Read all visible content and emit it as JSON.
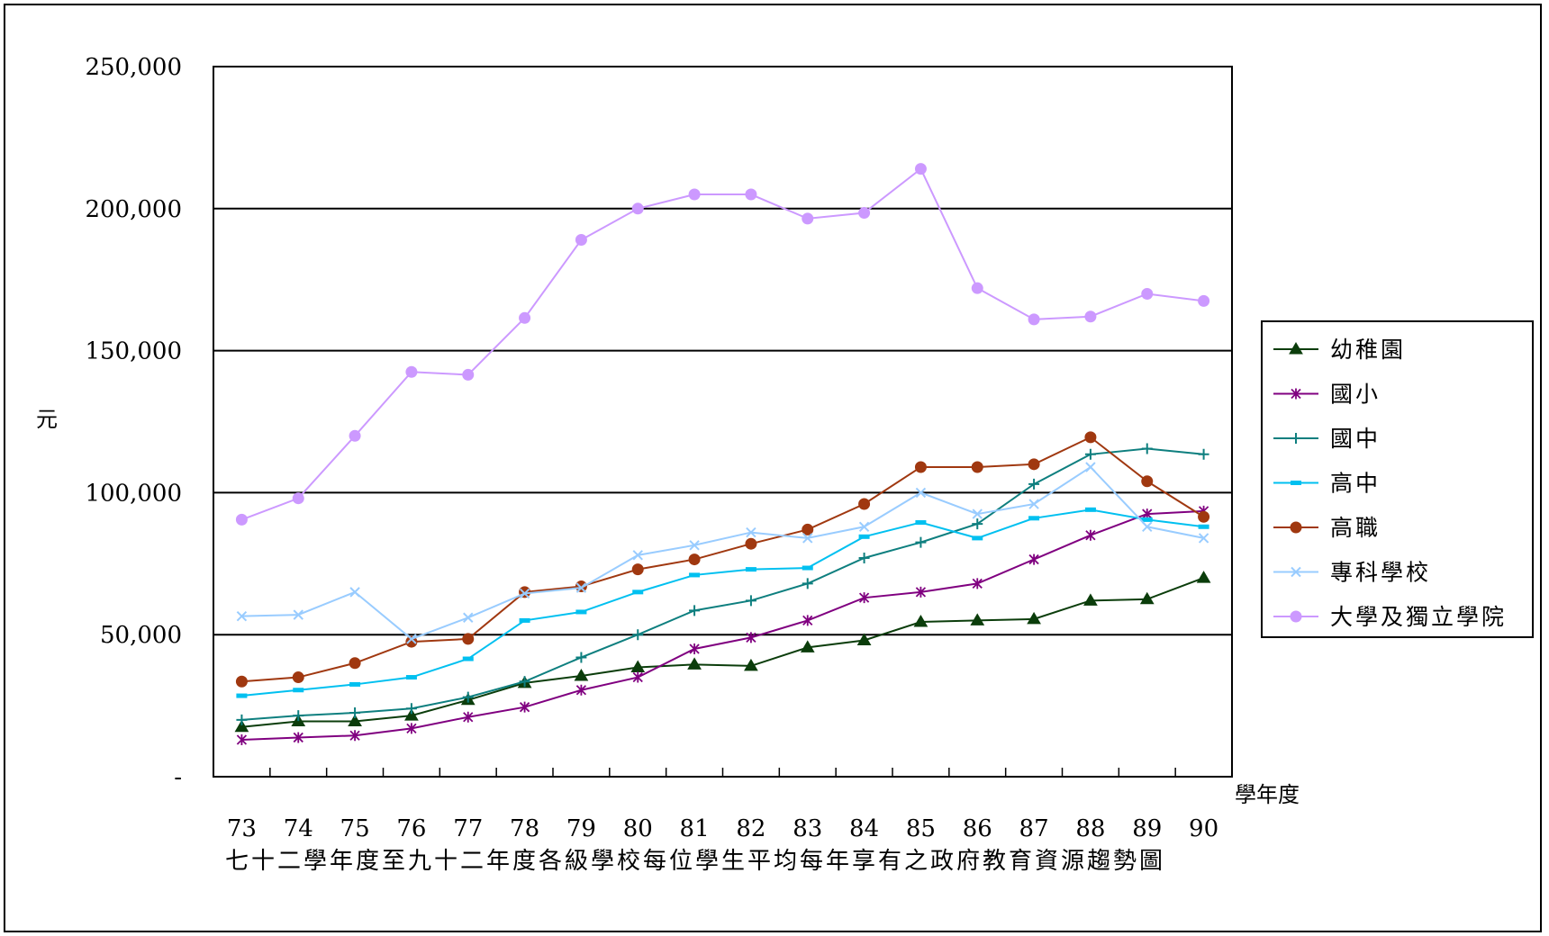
{
  "chart_data": {
    "type": "line",
    "title": "七十二學年度至九十二年度各級學校每位學生平均每年享有之政府教育資源趨勢圖",
    "ylabel": "元",
    "xlabel": "學年度",
    "ylim": [
      0,
      250000
    ],
    "yticks": [
      0,
      50000,
      100000,
      150000,
      200000,
      250000
    ],
    "ytick_labels": [
      "-",
      "50,000",
      "100,000",
      "150,000",
      "200,000",
      "250,000"
    ],
    "grid": "horizontal",
    "legend_position": "right",
    "categories": [
      "73",
      "74",
      "75",
      "76",
      "77",
      "78",
      "79",
      "80",
      "81",
      "82",
      "83",
      "84",
      "85",
      "86",
      "87",
      "88",
      "89",
      "90"
    ],
    "series": [
      {
        "name": "幼稚園",
        "color": "#0b3d0b",
        "marker": "triangle",
        "values": [
          17500,
          19500,
          19500,
          21500,
          27000,
          33000,
          35500,
          38500,
          39500,
          39000,
          45500,
          48000,
          54500,
          55000,
          55500,
          62000,
          62500,
          70000
        ]
      },
      {
        "name": "國小",
        "color": "#800080",
        "marker": "asterisk",
        "values": [
          13000,
          13800,
          14500,
          17000,
          21000,
          24500,
          30500,
          35000,
          45000,
          49000,
          55000,
          63000,
          65000,
          68000,
          76500,
          85000,
          92500,
          93500
        ]
      },
      {
        "name": "國中",
        "color": "#0e7f7f",
        "marker": "plus",
        "values": [
          20000,
          21500,
          22500,
          24000,
          28000,
          33500,
          42000,
          50000,
          58500,
          62000,
          68000,
          77000,
          82500,
          89000,
          103000,
          113500,
          115500,
          113500
        ]
      },
      {
        "name": "高中",
        "color": "#00c0f0",
        "marker": "dash",
        "values": [
          28500,
          30500,
          32500,
          35000,
          41500,
          55000,
          58000,
          65000,
          71000,
          73000,
          73500,
          84500,
          89500,
          84000,
          91000,
          94000,
          90500,
          88000
        ]
      },
      {
        "name": "高職",
        "color": "#a03810",
        "marker": "circle",
        "values": [
          33500,
          35000,
          40000,
          47500,
          48500,
          65000,
          67000,
          73000,
          76500,
          82000,
          87000,
          96000,
          109000,
          109000,
          110000,
          119500,
          104000,
          91500
        ]
      },
      {
        "name": "專科學校",
        "color": "#99ccff",
        "marker": "x",
        "values": [
          56500,
          57000,
          65000,
          48500,
          56000,
          64500,
          66500,
          78000,
          81500,
          86000,
          84000,
          88000,
          100000,
          92500,
          96000,
          109000,
          88000,
          84000
        ]
      },
      {
        "name": "大學及獨立學院",
        "color": "#cc99ff",
        "marker": "circle",
        "values": [
          90500,
          98000,
          120000,
          142500,
          141500,
          161500,
          189000,
          200000,
          205000,
          205000,
          196500,
          198500,
          214000,
          172000,
          161000,
          162000,
          170000,
          167500
        ]
      }
    ]
  }
}
